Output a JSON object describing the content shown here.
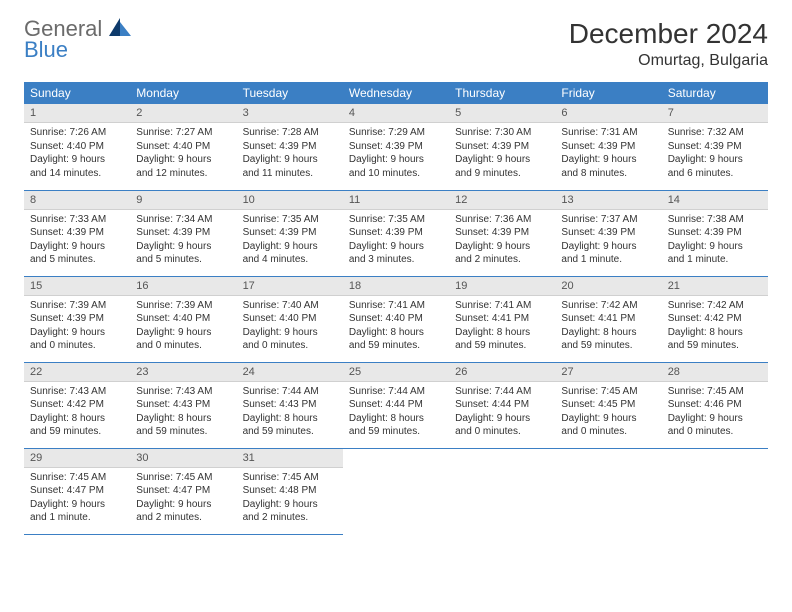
{
  "logo": {
    "general": "General",
    "blue": "Blue"
  },
  "header": {
    "title": "December 2024",
    "location": "Omurtag, Bulgaria"
  },
  "colors": {
    "header_bg": "#3b7fc4",
    "header_text": "#ffffff",
    "daynum_bg": "#e8e8e8",
    "border": "#3b7fc4",
    "logo_gray": "#6b6b6b",
    "logo_blue": "#3b7fc4",
    "sail_dark": "#0d3a6b",
    "sail_light": "#3b7fc4"
  },
  "weekdays": [
    "Sunday",
    "Monday",
    "Tuesday",
    "Wednesday",
    "Thursday",
    "Friday",
    "Saturday"
  ],
  "days": [
    {
      "n": 1,
      "sunrise": "7:26 AM",
      "sunset": "4:40 PM",
      "daylight": "9 hours and 14 minutes."
    },
    {
      "n": 2,
      "sunrise": "7:27 AM",
      "sunset": "4:40 PM",
      "daylight": "9 hours and 12 minutes."
    },
    {
      "n": 3,
      "sunrise": "7:28 AM",
      "sunset": "4:39 PM",
      "daylight": "9 hours and 11 minutes."
    },
    {
      "n": 4,
      "sunrise": "7:29 AM",
      "sunset": "4:39 PM",
      "daylight": "9 hours and 10 minutes."
    },
    {
      "n": 5,
      "sunrise": "7:30 AM",
      "sunset": "4:39 PM",
      "daylight": "9 hours and 9 minutes."
    },
    {
      "n": 6,
      "sunrise": "7:31 AM",
      "sunset": "4:39 PM",
      "daylight": "9 hours and 8 minutes."
    },
    {
      "n": 7,
      "sunrise": "7:32 AM",
      "sunset": "4:39 PM",
      "daylight": "9 hours and 6 minutes."
    },
    {
      "n": 8,
      "sunrise": "7:33 AM",
      "sunset": "4:39 PM",
      "daylight": "9 hours and 5 minutes."
    },
    {
      "n": 9,
      "sunrise": "7:34 AM",
      "sunset": "4:39 PM",
      "daylight": "9 hours and 5 minutes."
    },
    {
      "n": 10,
      "sunrise": "7:35 AM",
      "sunset": "4:39 PM",
      "daylight": "9 hours and 4 minutes."
    },
    {
      "n": 11,
      "sunrise": "7:35 AM",
      "sunset": "4:39 PM",
      "daylight": "9 hours and 3 minutes."
    },
    {
      "n": 12,
      "sunrise": "7:36 AM",
      "sunset": "4:39 PM",
      "daylight": "9 hours and 2 minutes."
    },
    {
      "n": 13,
      "sunrise": "7:37 AM",
      "sunset": "4:39 PM",
      "daylight": "9 hours and 1 minute."
    },
    {
      "n": 14,
      "sunrise": "7:38 AM",
      "sunset": "4:39 PM",
      "daylight": "9 hours and 1 minute."
    },
    {
      "n": 15,
      "sunrise": "7:39 AM",
      "sunset": "4:39 PM",
      "daylight": "9 hours and 0 minutes."
    },
    {
      "n": 16,
      "sunrise": "7:39 AM",
      "sunset": "4:40 PM",
      "daylight": "9 hours and 0 minutes."
    },
    {
      "n": 17,
      "sunrise": "7:40 AM",
      "sunset": "4:40 PM",
      "daylight": "9 hours and 0 minutes."
    },
    {
      "n": 18,
      "sunrise": "7:41 AM",
      "sunset": "4:40 PM",
      "daylight": "8 hours and 59 minutes."
    },
    {
      "n": 19,
      "sunrise": "7:41 AM",
      "sunset": "4:41 PM",
      "daylight": "8 hours and 59 minutes."
    },
    {
      "n": 20,
      "sunrise": "7:42 AM",
      "sunset": "4:41 PM",
      "daylight": "8 hours and 59 minutes."
    },
    {
      "n": 21,
      "sunrise": "7:42 AM",
      "sunset": "4:42 PM",
      "daylight": "8 hours and 59 minutes."
    },
    {
      "n": 22,
      "sunrise": "7:43 AM",
      "sunset": "4:42 PM",
      "daylight": "8 hours and 59 minutes."
    },
    {
      "n": 23,
      "sunrise": "7:43 AM",
      "sunset": "4:43 PM",
      "daylight": "8 hours and 59 minutes."
    },
    {
      "n": 24,
      "sunrise": "7:44 AM",
      "sunset": "4:43 PM",
      "daylight": "8 hours and 59 minutes."
    },
    {
      "n": 25,
      "sunrise": "7:44 AM",
      "sunset": "4:44 PM",
      "daylight": "8 hours and 59 minutes."
    },
    {
      "n": 26,
      "sunrise": "7:44 AM",
      "sunset": "4:44 PM",
      "daylight": "9 hours and 0 minutes."
    },
    {
      "n": 27,
      "sunrise": "7:45 AM",
      "sunset": "4:45 PM",
      "daylight": "9 hours and 0 minutes."
    },
    {
      "n": 28,
      "sunrise": "7:45 AM",
      "sunset": "4:46 PM",
      "daylight": "9 hours and 0 minutes."
    },
    {
      "n": 29,
      "sunrise": "7:45 AM",
      "sunset": "4:47 PM",
      "daylight": "9 hours and 1 minute."
    },
    {
      "n": 30,
      "sunrise": "7:45 AM",
      "sunset": "4:47 PM",
      "daylight": "9 hours and 2 minutes."
    },
    {
      "n": 31,
      "sunrise": "7:45 AM",
      "sunset": "4:48 PM",
      "daylight": "9 hours and 2 minutes."
    }
  ],
  "labels": {
    "sunrise": "Sunrise: ",
    "sunset": "Sunset: ",
    "daylight": "Daylight: "
  },
  "layout": {
    "start_weekday": 0,
    "total_days": 31,
    "cols": 7
  }
}
